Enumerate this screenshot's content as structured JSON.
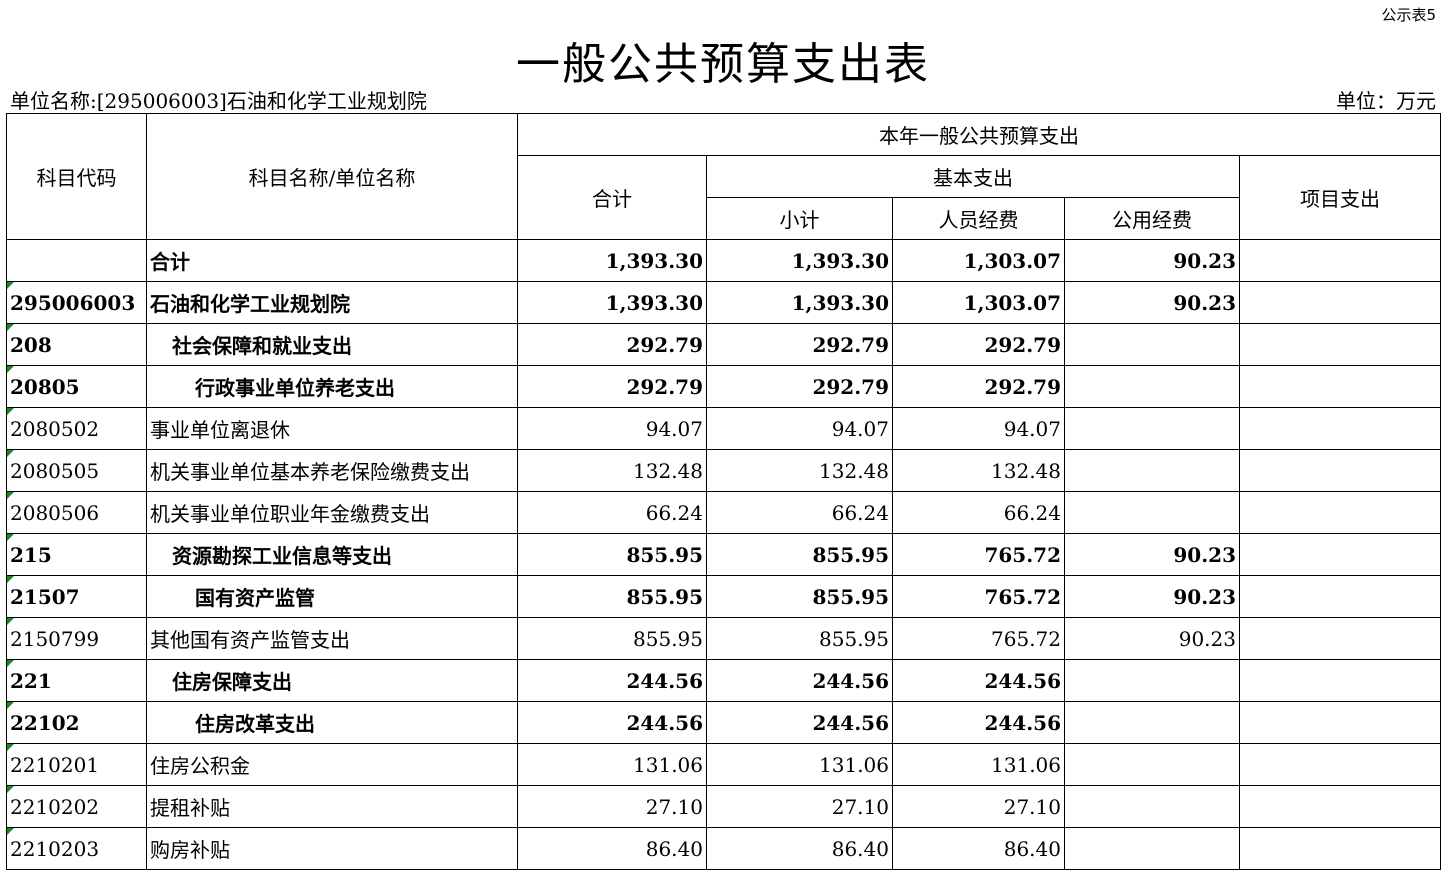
{
  "form_tag": "公示表5",
  "title": "一般公共预算支出表",
  "unit_name": "单位名称:[295006003]石油和化学工业规划院",
  "unit": "单位：万元",
  "headers": {
    "code": "科目代码",
    "name": "科目名称/单位名称",
    "group": "本年一般公共预算支出",
    "total": "合计",
    "basic": "基本支出",
    "subtotal": "小计",
    "personnel": "人员经费",
    "public": "公用经费",
    "project": "项目支出"
  },
  "rows": [
    {
      "code": "",
      "name": "合计",
      "total": "1,393.30",
      "subtotal": "1,393.30",
      "personnel": "1,303.07",
      "public": "90.23",
      "project": "",
      "level": 0,
      "bold": true
    },
    {
      "code": "295006003",
      "name": "石油和化学工业规划院",
      "total": "1,393.30",
      "subtotal": "1,393.30",
      "personnel": "1,303.07",
      "public": "90.23",
      "project": "",
      "level": 0,
      "bold": true
    },
    {
      "code": "208",
      "name": "社会保障和就业支出",
      "total": "292.79",
      "subtotal": "292.79",
      "personnel": "292.79",
      "public": "",
      "project": "",
      "level": 1,
      "bold": true
    },
    {
      "code": "20805",
      "name": "行政事业单位养老支出",
      "total": "292.79",
      "subtotal": "292.79",
      "personnel": "292.79",
      "public": "",
      "project": "",
      "level": 2,
      "bold": true
    },
    {
      "code": "2080502",
      "name": "事业单位离退休",
      "total": "94.07",
      "subtotal": "94.07",
      "personnel": "94.07",
      "public": "",
      "project": "",
      "level": 0,
      "bold": false
    },
    {
      "code": "2080505",
      "name": "机关事业单位基本养老保险缴费支出",
      "total": "132.48",
      "subtotal": "132.48",
      "personnel": "132.48",
      "public": "",
      "project": "",
      "level": 0,
      "bold": false
    },
    {
      "code": "2080506",
      "name": "机关事业单位职业年金缴费支出",
      "total": "66.24",
      "subtotal": "66.24",
      "personnel": "66.24",
      "public": "",
      "project": "",
      "level": 0,
      "bold": false
    },
    {
      "code": "215",
      "name": "资源勘探工业信息等支出",
      "total": "855.95",
      "subtotal": "855.95",
      "personnel": "765.72",
      "public": "90.23",
      "project": "",
      "level": 1,
      "bold": true
    },
    {
      "code": "21507",
      "name": "国有资产监管",
      "total": "855.95",
      "subtotal": "855.95",
      "personnel": "765.72",
      "public": "90.23",
      "project": "",
      "level": 2,
      "bold": true
    },
    {
      "code": "2150799",
      "name": "其他国有资产监管支出",
      "total": "855.95",
      "subtotal": "855.95",
      "personnel": "765.72",
      "public": "90.23",
      "project": "",
      "level": 0,
      "bold": false
    },
    {
      "code": "221",
      "name": "住房保障支出",
      "total": "244.56",
      "subtotal": "244.56",
      "personnel": "244.56",
      "public": "",
      "project": "",
      "level": 1,
      "bold": true
    },
    {
      "code": "22102",
      "name": "住房改革支出",
      "total": "244.56",
      "subtotal": "244.56",
      "personnel": "244.56",
      "public": "",
      "project": "",
      "level": 2,
      "bold": true
    },
    {
      "code": "2210201",
      "name": "住房公积金",
      "total": "131.06",
      "subtotal": "131.06",
      "personnel": "131.06",
      "public": "",
      "project": "",
      "level": 0,
      "bold": false
    },
    {
      "code": "2210202",
      "name": "提租补贴",
      "total": "27.10",
      "subtotal": "27.10",
      "personnel": "27.10",
      "public": "",
      "project": "",
      "level": 0,
      "bold": false
    },
    {
      "code": "2210203",
      "name": "购房补贴",
      "total": "86.40",
      "subtotal": "86.40",
      "personnel": "86.40",
      "public": "",
      "project": "",
      "level": 0,
      "bold": false
    }
  ]
}
